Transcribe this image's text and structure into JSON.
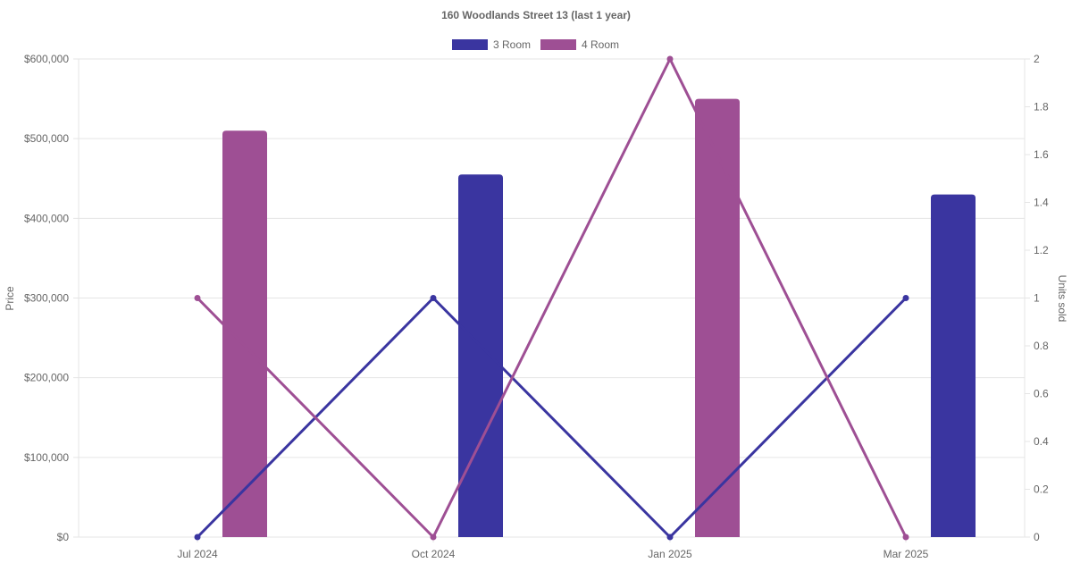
{
  "chart_data": {
    "type": "bar",
    "title": "160 Woodlands Street 13 (last 1 year)",
    "categories": [
      "Jul 2024",
      "Oct 2024",
      "Jan 2025",
      "Mar 2025"
    ],
    "x_labels": [
      "Jul 2024",
      "Oct 2024",
      "Jan 2025",
      "Mar 2025"
    ],
    "ylabel": "Price",
    "y2label": "Units sold",
    "ylim": [
      0,
      600000
    ],
    "y2lim": [
      0,
      2
    ],
    "y_ticks": [
      "$0",
      "$100,000",
      "$200,000",
      "$300,000",
      "$400,000",
      "$500,000",
      "$600,000"
    ],
    "y2_ticks": [
      "0",
      "0.2",
      "0.4",
      "0.6",
      "0.8",
      "1",
      "1.2",
      "1.4",
      "1.6",
      "1.8",
      "2"
    ],
    "legend_position": "top",
    "grid": true,
    "series": [
      {
        "name": "3 Room",
        "color": "#3a35a0",
        "price": [
          null,
          455000,
          null,
          430000
        ],
        "units_sold": [
          0,
          1,
          0,
          1
        ]
      },
      {
        "name": "4 Room",
        "color": "#9e4f94",
        "price": [
          510000,
          null,
          550000,
          null
        ],
        "units_sold": [
          1,
          0,
          2,
          0
        ]
      }
    ]
  }
}
